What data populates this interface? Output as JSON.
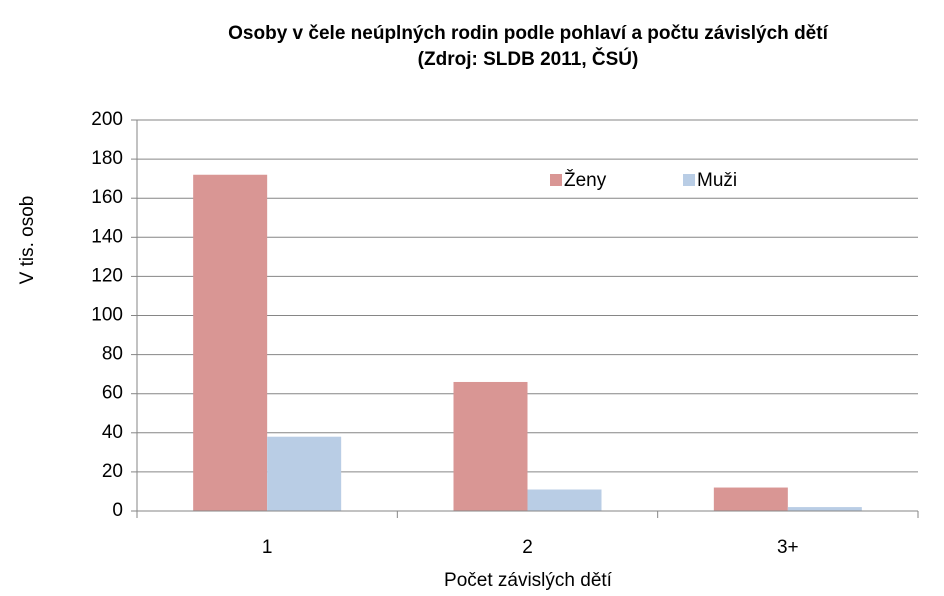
{
  "chart_data": {
    "type": "bar",
    "title": "Osoby v čele neúplných rodin podle pohlaví a počtu závislých dětí",
    "subtitle": "(Zdroj: SLDB 2011, ČSÚ)",
    "x_label": "Počet závislých dětí",
    "y_label": "V tis. osob",
    "categories": [
      "1",
      "2",
      "3+"
    ],
    "series": [
      {
        "name": "Ženy",
        "color": "#d99694",
        "values": [
          172,
          66,
          12
        ]
      },
      {
        "name": "Muži",
        "color": "#b9cde5",
        "values": [
          38,
          11,
          2
        ]
      }
    ],
    "ylim": [
      0,
      200
    ],
    "yticks": [
      0,
      20,
      40,
      60,
      80,
      100,
      120,
      140,
      160,
      180,
      200
    ],
    "grid": true,
    "legend": "top-right"
  }
}
